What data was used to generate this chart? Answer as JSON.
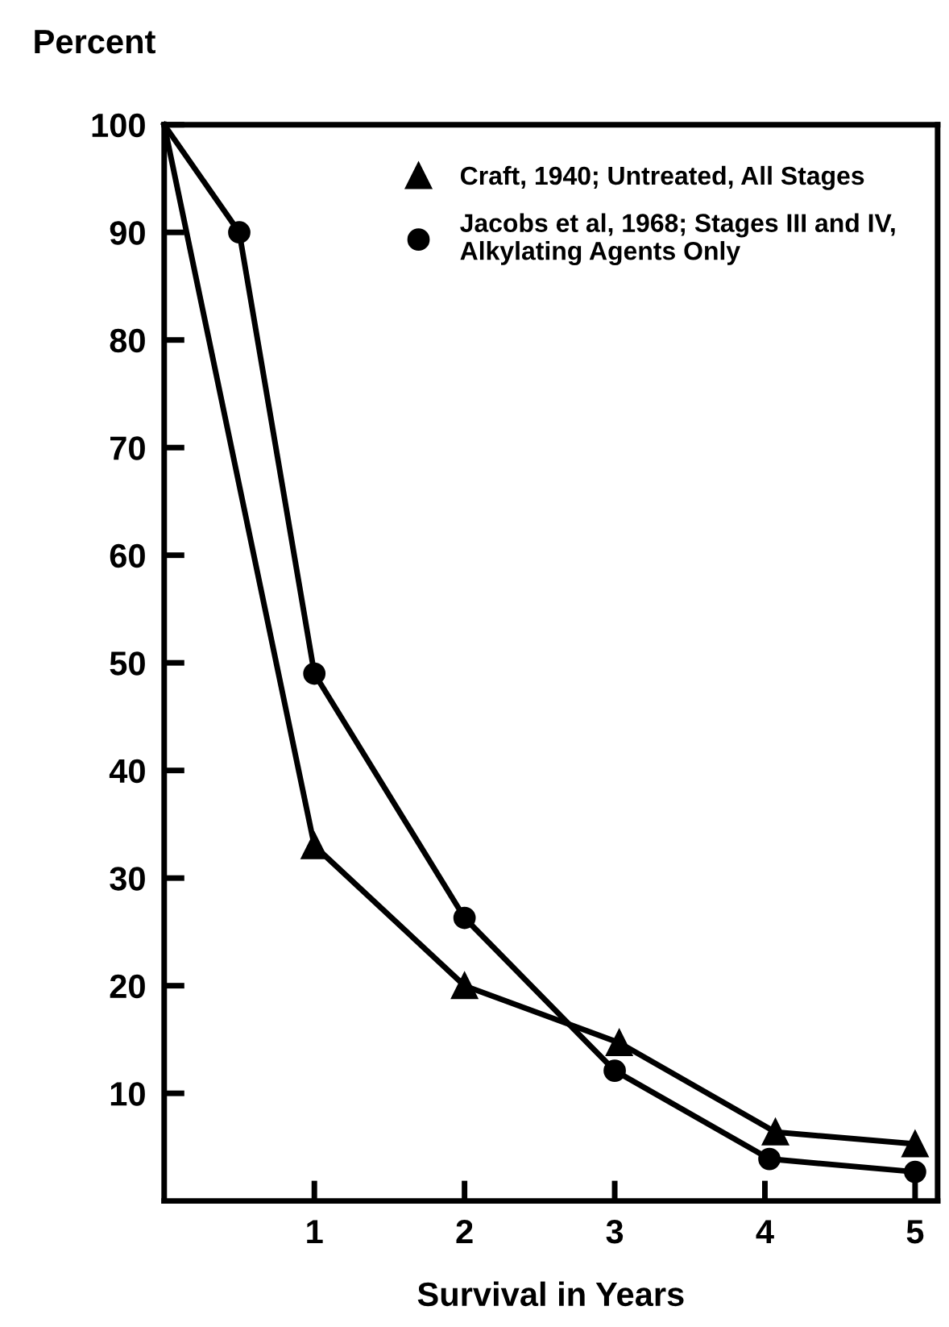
{
  "chart_data": {
    "type": "line",
    "xlabel": "Survival in Years",
    "ylabel": "Percent",
    "xlim": [
      0,
      5.15
    ],
    "ylim": [
      0,
      100
    ],
    "xticks": [
      1,
      2,
      3,
      4,
      5
    ],
    "yticks": [
      10,
      20,
      30,
      40,
      50,
      60,
      70,
      80,
      90,
      100
    ],
    "grid": false,
    "legend": "top right",
    "line_style": "solid",
    "series": [
      {
        "name": "Craft, 1940; Untreated, All Stages",
        "color": "#000000",
        "marker": "triangle",
        "x": [
          0,
          1,
          2,
          3.03,
          4.07,
          5
        ],
        "values": [
          100,
          33,
          20,
          14.7,
          6.4,
          5.3
        ]
      },
      {
        "name": "Jacobs et al, 1968; Stages III and IV,\nAlkylating Agents Only",
        "color": "#000000",
        "marker": "circle",
        "x": [
          0,
          0.5,
          1,
          2,
          3,
          4.03,
          5
        ],
        "values": [
          100,
          90,
          49,
          26.3,
          12.1,
          3.9,
          2.7
        ]
      }
    ]
  }
}
